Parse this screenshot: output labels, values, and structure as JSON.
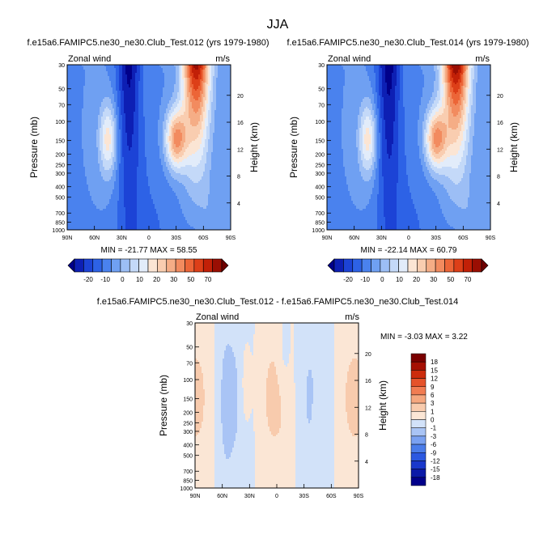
{
  "figure_title": "JJA",
  "colors": {
    "wind_scale": [
      "#01008a",
      "#0d1fb4",
      "#1c43d6",
      "#2d62e6",
      "#4a82ee",
      "#6fa0f2",
      "#9cbef5",
      "#c4d9f8",
      "#e2ecfa",
      "#fbe5d4",
      "#f9cdb0",
      "#f5ad86",
      "#f28b5f",
      "#ec6537",
      "#dd3f18",
      "#c22007",
      "#9a0e03",
      "#6d0000"
    ],
    "diff_scale": [
      "#01008a",
      "#0b1aa8",
      "#1a38cb",
      "#2b58e0",
      "#4a7ce9",
      "#7aa1f1",
      "#a9c4f5",
      "#d2e2f9",
      "#fbe6d5",
      "#f8cbad",
      "#f5a77f",
      "#f17c52",
      "#e5522a",
      "#cc2c0c",
      "#a50f03",
      "#7a0000"
    ]
  },
  "chart_data": [
    {
      "type": "heatmap",
      "title": "f.e15a6.FAMIPC5.ne30_ne30.Club_Test.012 (yrs 1979-1980)",
      "left_label": "Zonal wind",
      "right_label": "m/s",
      "xlabel": "",
      "ylabel": "Pressure (mb)",
      "y2label": "Height (km)",
      "x_ticks": [
        "90N",
        "60N",
        "30N",
        "0",
        "30S",
        "60S",
        "90S"
      ],
      "y_ticks": [
        "30",
        "50",
        "70",
        "100",
        "150",
        "200",
        "250",
        "300",
        "400",
        "500",
        "700",
        "850",
        "1000"
      ],
      "y_tick_values": [
        30,
        50,
        70,
        100,
        150,
        200,
        250,
        300,
        400,
        500,
        700,
        850,
        1000
      ],
      "height_ticks": [
        "4",
        "8",
        "12",
        "16",
        "20"
      ],
      "stats": "MIN = -21.77  MAX = 58.55",
      "colorbar_labels": [
        "-20",
        "-10",
        "0",
        "10",
        "20",
        "30",
        "50",
        "70"
      ],
      "model": "exp012"
    },
    {
      "type": "heatmap",
      "title": "f.e15a6.FAMIPC5.ne30_ne30.Club_Test.014 (yrs 1979-1980)",
      "left_label": "Zonal wind",
      "right_label": "m/s",
      "xlabel": "",
      "ylabel": "Pressure (mb)",
      "y2label": "Height (km)",
      "x_ticks": [
        "90N",
        "60N",
        "30N",
        "0",
        "30S",
        "60S",
        "90S"
      ],
      "y_ticks": [
        "30",
        "50",
        "70",
        "100",
        "150",
        "200",
        "250",
        "300",
        "400",
        "500",
        "700",
        "850",
        "1000"
      ],
      "y_tick_values": [
        30,
        50,
        70,
        100,
        150,
        200,
        250,
        300,
        400,
        500,
        700,
        850,
        1000
      ],
      "height_ticks": [
        "4",
        "8",
        "12",
        "16",
        "20"
      ],
      "stats": "MIN = -22.14  MAX = 60.79",
      "colorbar_labels": [
        "-20",
        "-10",
        "0",
        "10",
        "20",
        "30",
        "50",
        "70"
      ],
      "model": "exp014"
    },
    {
      "type": "heatmap",
      "title": "f.e15a6.FAMIPC5.ne30_ne30.Club_Test.012 - f.e15a6.FAMIPC5.ne30_ne30.Club_Test.014",
      "left_label": "Zonal wind",
      "right_label": "m/s",
      "xlabel": "",
      "ylabel": "Pressure (mb)",
      "y2label": "Height (km)",
      "x_ticks": [
        "90N",
        "60N",
        "30N",
        "0",
        "30S",
        "60S",
        "90S"
      ],
      "y_ticks": [
        "30",
        "50",
        "70",
        "100",
        "150",
        "200",
        "250",
        "300",
        "400",
        "500",
        "700",
        "850",
        "1000"
      ],
      "y_tick_values": [
        30,
        50,
        70,
        100,
        150,
        200,
        250,
        300,
        400,
        500,
        700,
        850,
        1000
      ],
      "height_ticks": [
        "4",
        "8",
        "12",
        "16",
        "20"
      ],
      "stats": "MIN = -3.03  MAX =  3.22",
      "colorbar_labels": [
        "18",
        "15",
        "12",
        "9",
        "6",
        "3",
        "1",
        "0",
        "-1",
        "-3",
        "-6",
        "-9",
        "-12",
        "-15",
        "-18"
      ],
      "model": "diff"
    }
  ]
}
